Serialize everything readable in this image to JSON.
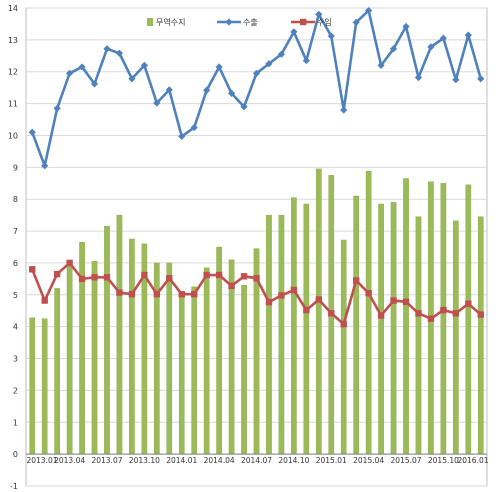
{
  "chart_data": {
    "type": "bar",
    "title": "",
    "xlabel": "",
    "ylabel": "",
    "ylim": [
      -1,
      14
    ],
    "yticks": [
      -1,
      0,
      1,
      2,
      3,
      4,
      5,
      6,
      7,
      8,
      9,
      10,
      11,
      12,
      13,
      14
    ],
    "grid": true,
    "legend_placement": "top-center",
    "x_tick_labels": [
      "2013.01",
      "2013.04",
      "2013.07",
      "2013.10",
      "2014.01",
      "2014.04",
      "2014.07",
      "2014.10",
      "2015.01",
      "2015.04",
      "2015.07",
      "2015.10",
      "2016.01"
    ],
    "x_tick_every": 3,
    "series": [
      {
        "name": "무역수지",
        "type": "bar",
        "color": "#9bbb59",
        "values": [
          4.28,
          4.25,
          5.2,
          5.95,
          6.65,
          6.05,
          7.15,
          7.5,
          6.75,
          6.6,
          6.0,
          6.0,
          5.0,
          5.25,
          5.85,
          6.5,
          6.1,
          5.3,
          6.45,
          7.5,
          7.5,
          8.05,
          7.85,
          8.95,
          8.75,
          6.72,
          8.1,
          8.88,
          7.85,
          7.9,
          8.65,
          7.45,
          8.55,
          8.5,
          7.32,
          8.45,
          7.45
        ]
      },
      {
        "name": "수출",
        "type": "line",
        "color": "#4f81bd",
        "values": [
          10.1,
          9.05,
          10.85,
          11.95,
          12.15,
          11.62,
          12.72,
          12.58,
          11.78,
          12.2,
          11.02,
          11.43,
          9.97,
          10.25,
          11.42,
          12.15,
          11.32,
          10.9,
          11.95,
          12.25,
          12.55,
          13.25,
          12.35,
          13.8,
          13.12,
          10.8,
          13.55,
          13.92,
          12.2,
          12.72,
          13.42,
          11.82,
          12.78,
          13.05,
          11.75,
          13.15,
          11.78
        ]
      },
      {
        "name": "수입",
        "type": "line",
        "color": "#c0504d",
        "values": [
          5.8,
          4.82,
          5.65,
          6.0,
          5.5,
          5.55,
          5.55,
          5.07,
          5.02,
          5.62,
          5.02,
          5.52,
          5.02,
          5.02,
          5.62,
          5.62,
          5.28,
          5.58,
          5.52,
          4.77,
          4.98,
          5.15,
          4.52,
          4.85,
          4.42,
          4.08,
          5.45,
          5.05,
          4.35,
          4.82,
          4.78,
          4.42,
          4.25,
          4.52,
          4.42,
          4.72,
          4.38
        ]
      }
    ]
  }
}
